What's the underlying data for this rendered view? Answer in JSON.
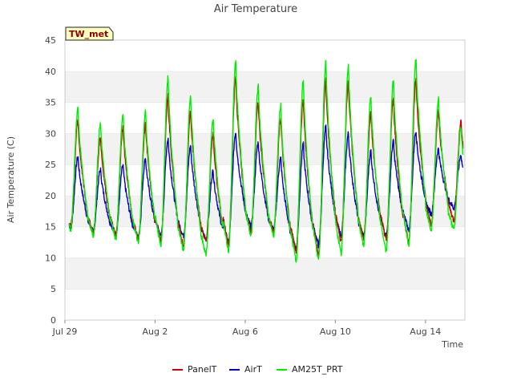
{
  "chart_data": {
    "type": "line",
    "title": "Air Temperature",
    "xlabel": "Time",
    "ylabel": "Air Temperature (C)",
    "ylim": [
      0,
      45
    ],
    "yticks": [
      0,
      5,
      10,
      15,
      20,
      25,
      30,
      35,
      40,
      45
    ],
    "xlim": [
      "2023-07-29",
      "2023-08-15T18:00"
    ],
    "xticks": [
      {
        "date": "2023-07-29",
        "label": "Jul 29"
      },
      {
        "date": "2023-08-02",
        "label": "Aug 2"
      },
      {
        "date": "2023-08-06",
        "label": "Aug 6"
      },
      {
        "date": "2023-08-10",
        "label": "Aug 10"
      },
      {
        "date": "2023-08-14",
        "label": "Aug 14"
      }
    ],
    "grid": "horizontal alternating bands",
    "legend_position": "bottom-center",
    "station_label": "TW_met",
    "daily": [
      {
        "date": "2023-07-29",
        "PanelT": [
          15.0,
          32.0
        ],
        "AirT": [
          14.8,
          26.2
        ],
        "AM25T_PRT": [
          14.5,
          34.0
        ]
      },
      {
        "date": "2023-07-30",
        "PanelT": [
          14.0,
          29.5
        ],
        "AirT": [
          14.2,
          24.2
        ],
        "AM25T_PRT": [
          13.5,
          31.5
        ]
      },
      {
        "date": "2023-07-31",
        "PanelT": [
          13.5,
          31.0
        ],
        "AirT": [
          13.8,
          24.8
        ],
        "AM25T_PRT": [
          13.0,
          33.0
        ]
      },
      {
        "date": "2023-08-01",
        "PanelT": [
          13.0,
          31.5
        ],
        "AirT": [
          13.2,
          26.0
        ],
        "AM25T_PRT": [
          12.5,
          33.5
        ]
      },
      {
        "date": "2023-08-02",
        "PanelT": [
          12.5,
          36.0
        ],
        "AirT": [
          13.5,
          29.2
        ],
        "AM25T_PRT": [
          12.0,
          39.0
        ]
      },
      {
        "date": "2023-08-03",
        "PanelT": [
          12.0,
          33.5
        ],
        "AirT": [
          13.5,
          28.0
        ],
        "AM25T_PRT": [
          11.0,
          36.0
        ]
      },
      {
        "date": "2023-08-04",
        "PanelT": [
          12.5,
          30.0
        ],
        "AirT": [
          13.0,
          24.0
        ],
        "AM25T_PRT": [
          10.5,
          32.5
        ]
      },
      {
        "date": "2023-08-05",
        "PanelT": [
          12.0,
          39.0
        ],
        "AirT": [
          12.5,
          30.2
        ],
        "AM25T_PRT": [
          11.0,
          41.5
        ]
      },
      {
        "date": "2023-08-06",
        "PanelT": [
          14.0,
          35.0
        ],
        "AirT": [
          15.0,
          28.5
        ],
        "AM25T_PRT": [
          13.5,
          37.5
        ]
      },
      {
        "date": "2023-08-07",
        "PanelT": [
          14.0,
          32.5
        ],
        "AirT": [
          14.5,
          26.0
        ],
        "AM25T_PRT": [
          13.5,
          34.5
        ]
      },
      {
        "date": "2023-08-08",
        "PanelT": [
          11.0,
          35.5
        ],
        "AirT": [
          11.5,
          28.2
        ],
        "AM25T_PRT": [
          9.5,
          38.5
        ]
      },
      {
        "date": "2023-08-09",
        "PanelT": [
          10.5,
          38.5
        ],
        "AirT": [
          12.0,
          31.0
        ],
        "AM25T_PRT": [
          9.5,
          41.5
        ]
      },
      {
        "date": "2023-08-10",
        "PanelT": [
          12.5,
          38.5
        ],
        "AirT": [
          13.5,
          30.0
        ],
        "AM25T_PRT": [
          10.5,
          41.0
        ]
      },
      {
        "date": "2023-08-11",
        "PanelT": [
          13.0,
          33.5
        ],
        "AirT": [
          13.5,
          27.2
        ],
        "AM25T_PRT": [
          12.0,
          36.0
        ]
      },
      {
        "date": "2023-08-12",
        "PanelT": [
          13.0,
          35.5
        ],
        "AirT": [
          13.5,
          28.7
        ],
        "AM25T_PRT": [
          11.0,
          38.5
        ]
      },
      {
        "date": "2023-08-13",
        "PanelT": [
          12.5,
          38.5
        ],
        "AirT": [
          14.5,
          30.4
        ],
        "AM25T_PRT": [
          12.0,
          42.0
        ]
      },
      {
        "date": "2023-08-14",
        "PanelT": [
          15.5,
          33.5
        ],
        "AirT": [
          17.0,
          27.5
        ],
        "AM25T_PRT": [
          14.5,
          35.5
        ]
      },
      {
        "date": "2023-08-15",
        "PanelT": [
          16.0,
          32.0
        ],
        "AirT": [
          18.0,
          26.5
        ],
        "AM25T_PRT": [
          14.5,
          31.0
        ]
      }
    ],
    "series": [
      {
        "name": "PanelT",
        "color": "#cc0000"
      },
      {
        "name": "AirT",
        "color": "#0000cc"
      },
      {
        "name": "AM25T_PRT",
        "color": "#00ee00"
      }
    ]
  }
}
